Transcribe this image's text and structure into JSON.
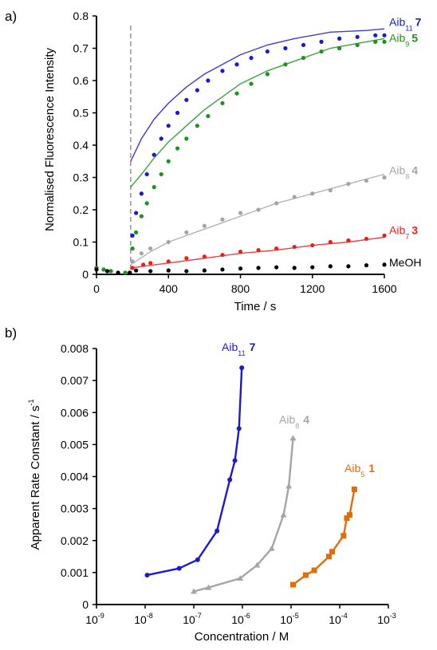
{
  "chart_data": [
    {
      "panel": "a)",
      "type": "scatter",
      "xlabel": "Time  / s",
      "ylabel": "Normalised Fluorescence Intensity",
      "xlim": [
        0,
        1600
      ],
      "ylim": [
        0,
        0.8
      ],
      "x_ticks": [
        "0",
        "400",
        "800",
        "1200",
        "1600"
      ],
      "y_ticks": [
        "0",
        "0.1",
        "0.2",
        "0.3",
        "0.4",
        "0.5",
        "0.6",
        "0.7",
        "0.8"
      ],
      "marker_x": 190,
      "series": [
        {
          "name": "Aib11 7",
          "label": "Aib",
          "sub": "11",
          "num": "7",
          "color": "#1a1ad0",
          "points": [
            [
              0,
              0.02
            ],
            [
              40,
              0.015
            ],
            [
              80,
              0.01
            ],
            [
              120,
              0.005
            ],
            [
              160,
              0.005
            ],
            [
              185,
              0.005
            ],
            [
              200,
              0.12
            ],
            [
              220,
              0.19
            ],
            [
              250,
              0.25
            ],
            [
              280,
              0.31
            ],
            [
              320,
              0.37
            ],
            [
              360,
              0.42
            ],
            [
              400,
              0.46
            ],
            [
              450,
              0.5
            ],
            [
              500,
              0.54
            ],
            [
              560,
              0.57
            ],
            [
              620,
              0.6
            ],
            [
              700,
              0.63
            ],
            [
              780,
              0.65
            ],
            [
              860,
              0.67
            ],
            [
              950,
              0.69
            ],
            [
              1050,
              0.7
            ],
            [
              1150,
              0.71
            ],
            [
              1250,
              0.72
            ],
            [
              1350,
              0.73
            ],
            [
              1450,
              0.735
            ],
            [
              1550,
              0.74
            ],
            [
              1600,
              0.74
            ]
          ],
          "fit": [
            [
              190,
              0.35
            ],
            [
              250,
              0.42
            ],
            [
              320,
              0.48
            ],
            [
              400,
              0.53
            ],
            [
              500,
              0.58
            ],
            [
              600,
              0.62
            ],
            [
              700,
              0.65
            ],
            [
              800,
              0.68
            ],
            [
              950,
              0.71
            ],
            [
              1100,
              0.73
            ],
            [
              1300,
              0.75
            ],
            [
              1500,
              0.755
            ],
            [
              1600,
              0.76
            ]
          ]
        },
        {
          "name": "Aib9 5",
          "label": "Aib",
          "sub": "9",
          "num": "5",
          "color": "#1c931c",
          "points": [
            [
              0,
              0.02
            ],
            [
              40,
              0.015
            ],
            [
              80,
              0.01
            ],
            [
              120,
              0.005
            ],
            [
              160,
              0.005
            ],
            [
              185,
              0.005
            ],
            [
              200,
              0.08
            ],
            [
              220,
              0.13
            ],
            [
              250,
              0.18
            ],
            [
              280,
              0.22
            ],
            [
              320,
              0.27
            ],
            [
              360,
              0.31
            ],
            [
              400,
              0.35
            ],
            [
              450,
              0.39
            ],
            [
              500,
              0.42
            ],
            [
              560,
              0.46
            ],
            [
              620,
              0.49
            ],
            [
              700,
              0.53
            ],
            [
              780,
              0.56
            ],
            [
              860,
              0.59
            ],
            [
              950,
              0.62
            ],
            [
              1050,
              0.65
            ],
            [
              1150,
              0.67
            ],
            [
              1250,
              0.69
            ],
            [
              1350,
              0.7
            ],
            [
              1450,
              0.71
            ],
            [
              1550,
              0.72
            ],
            [
              1600,
              0.72
            ]
          ],
          "fit": [
            [
              190,
              0.27
            ],
            [
              250,
              0.31
            ],
            [
              320,
              0.36
            ],
            [
              400,
              0.41
            ],
            [
              500,
              0.46
            ],
            [
              600,
              0.51
            ],
            [
              700,
              0.55
            ],
            [
              800,
              0.59
            ],
            [
              950,
              0.63
            ],
            [
              1100,
              0.66
            ],
            [
              1300,
              0.7
            ],
            [
              1500,
              0.72
            ],
            [
              1600,
              0.73
            ]
          ]
        },
        {
          "name": "Aib8 4",
          "label": "Aib",
          "sub": "8",
          "num": "4",
          "color": "#a5a5a5",
          "points": [
            [
              0,
              0.015
            ],
            [
              60,
              0.01
            ],
            [
              120,
              0.005
            ],
            [
              185,
              0.005
            ],
            [
              200,
              0.04
            ],
            [
              250,
              0.065
            ],
            [
              300,
              0.08
            ],
            [
              400,
              0.1
            ],
            [
              500,
              0.13
            ],
            [
              600,
              0.15
            ],
            [
              700,
              0.17
            ],
            [
              800,
              0.19
            ],
            [
              900,
              0.2
            ],
            [
              1000,
              0.22
            ],
            [
              1100,
              0.24
            ],
            [
              1200,
              0.25
            ],
            [
              1300,
              0.26
            ],
            [
              1400,
              0.28
            ],
            [
              1500,
              0.29
            ],
            [
              1600,
              0.3
            ]
          ],
          "fit": [
            [
              190,
              0.03
            ],
            [
              300,
              0.07
            ],
            [
              400,
              0.1
            ],
            [
              600,
              0.14
            ],
            [
              800,
              0.18
            ],
            [
              1000,
              0.22
            ],
            [
              1200,
              0.25
            ],
            [
              1400,
              0.28
            ],
            [
              1600,
              0.31
            ]
          ]
        },
        {
          "name": "Aib7 3",
          "label": "Aib",
          "sub": "7",
          "num": "3",
          "color": "#f01c1c",
          "points": [
            [
              0,
              0.015
            ],
            [
              60,
              0.01
            ],
            [
              120,
              0.005
            ],
            [
              185,
              0.005
            ],
            [
              200,
              0.02
            ],
            [
              260,
              0.03
            ],
            [
              300,
              0.035
            ],
            [
              400,
              0.04
            ],
            [
              500,
              0.05
            ],
            [
              600,
              0.055
            ],
            [
              700,
              0.06
            ],
            [
              800,
              0.07
            ],
            [
              900,
              0.075
            ],
            [
              1000,
              0.08
            ],
            [
              1100,
              0.085
            ],
            [
              1200,
              0.09
            ],
            [
              1300,
              0.1
            ],
            [
              1400,
              0.105
            ],
            [
              1500,
              0.11
            ],
            [
              1600,
              0.12
            ]
          ],
          "fit": [
            [
              190,
              0.02
            ],
            [
              400,
              0.035
            ],
            [
              600,
              0.05
            ],
            [
              800,
              0.065
            ],
            [
              1000,
              0.075
            ],
            [
              1200,
              0.09
            ],
            [
              1400,
              0.1
            ],
            [
              1600,
              0.115
            ]
          ]
        },
        {
          "name": "MeOH",
          "label": "MeOH",
          "sub": "",
          "num": "",
          "color": "#000000",
          "points": [
            [
              0,
              0.015
            ],
            [
              60,
              0.01
            ],
            [
              120,
              0.005
            ],
            [
              185,
              0.005
            ],
            [
              220,
              0.012
            ],
            [
              300,
              0.01
            ],
            [
              400,
              0.012
            ],
            [
              500,
              0.01
            ],
            [
              600,
              0.012
            ],
            [
              700,
              0.015
            ],
            [
              800,
              0.018
            ],
            [
              900,
              0.02
            ],
            [
              1000,
              0.022
            ],
            [
              1100,
              0.02
            ],
            [
              1200,
              0.022
            ],
            [
              1300,
              0.025
            ],
            [
              1400,
              0.025
            ],
            [
              1500,
              0.028
            ],
            [
              1600,
              0.03
            ]
          ],
          "fit": []
        }
      ]
    },
    {
      "panel": "b)",
      "type": "line",
      "xlabel": "Concentration / M",
      "ylabel": "Apparent Rate Constant / s",
      "ylabel_sup": "-1",
      "x_log": true,
      "xlim": [
        1e-09,
        0.001
      ],
      "ylim": [
        0,
        0.008
      ],
      "x_ticks": [
        {
          "base": "10",
          "exp": "-9"
        },
        {
          "base": "10",
          "exp": "-8"
        },
        {
          "base": "10",
          "exp": "-7"
        },
        {
          "base": "10",
          "exp": "-6"
        },
        {
          "base": "10",
          "exp": "-5"
        },
        {
          "base": "10",
          "exp": "-4"
        },
        {
          "base": "10",
          "exp": "-3"
        }
      ],
      "y_ticks": [
        "0",
        "0.001",
        "0.002",
        "0.003",
        "0.004",
        "0.005",
        "0.006",
        "0.007",
        "0.008"
      ],
      "series": [
        {
          "name": "Aib11 7",
          "label": "Aib",
          "sub": "11",
          "num": "7",
          "color": "#1a1ad0",
          "marker": "circle",
          "points": [
            [
              1.1e-08,
              0.00092
            ],
            [
              5e-08,
              0.00113
            ],
            [
              1.2e-07,
              0.0014
            ],
            [
              3e-07,
              0.0023
            ],
            [
              5.5e-07,
              0.0039
            ],
            [
              7e-07,
              0.0045
            ],
            [
              8.5e-07,
              0.0055
            ],
            [
              9.7e-07,
              0.0074
            ]
          ]
        },
        {
          "name": "Aib8 4",
          "label": "Aib",
          "sub": "8",
          "num": "4",
          "color": "#a5a5a5",
          "marker": "triangle",
          "points": [
            [
              1e-07,
              0.00041
            ],
            [
              2e-07,
              0.00053
            ],
            [
              9e-07,
              0.00082
            ],
            [
              2e-06,
              0.00123
            ],
            [
              4e-06,
              0.00175
            ],
            [
              7e-06,
              0.0028
            ],
            [
              9e-06,
              0.0037
            ],
            [
              1.1e-05,
              0.0052
            ]
          ]
        },
        {
          "name": "Aib5 1",
          "label": "Aib",
          "sub": "5",
          "num": "1",
          "color": "#e36c0a",
          "marker": "square",
          "points": [
            [
              1.1e-05,
              0.00062
            ],
            [
              2e-05,
              0.00092
            ],
            [
              3e-05,
              0.00107
            ],
            [
              6e-05,
              0.0015
            ],
            [
              7e-05,
              0.00165
            ],
            [
              0.00012,
              0.00215
            ],
            [
              0.00014,
              0.0027
            ],
            [
              0.00016,
              0.0028
            ],
            [
              0.0002,
              0.0036
            ]
          ]
        }
      ]
    }
  ]
}
